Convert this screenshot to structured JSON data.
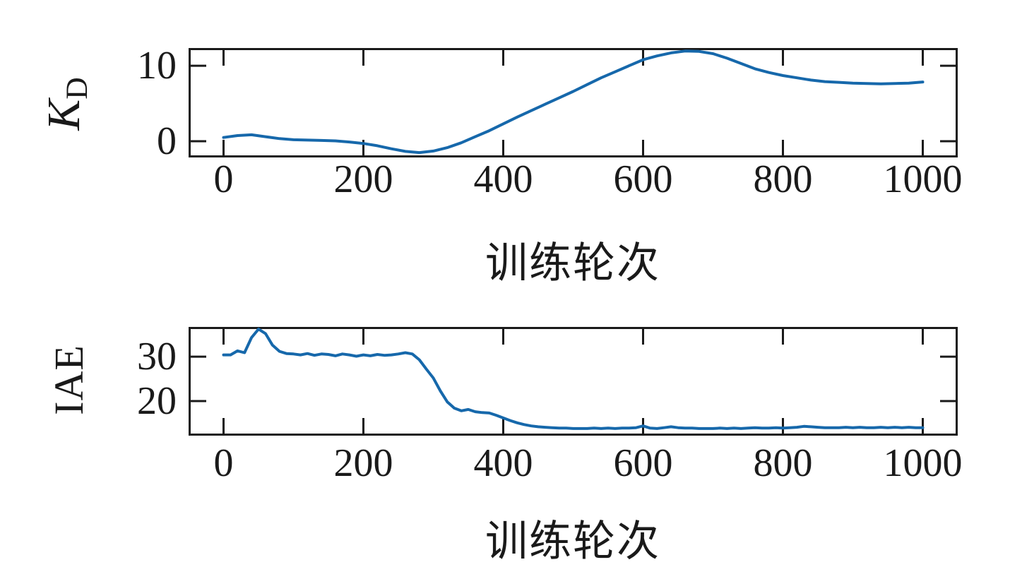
{
  "figure": {
    "background": "#ffffff",
    "axis_color": "#1a1a1a",
    "line_color": "#1668ab"
  },
  "chart_data": [
    {
      "type": "line",
      "title": "",
      "ylabel": "KD",
      "ylabel_main": "K",
      "ylabel_sub": "D",
      "xlabel": "训练轮次",
      "x_ticks": [
        0,
        200,
        400,
        600,
        800,
        1000
      ],
      "y_ticks": [
        10,
        0
      ],
      "xlim": [
        -50,
        1050
      ],
      "ylim": [
        -2.15,
        12.35
      ],
      "grid": false,
      "legend": "none",
      "series": [
        {
          "name": "KD",
          "x_start": 0,
          "x_step": 20,
          "y": [
            0.5,
            0.75,
            0.85,
            0.6,
            0.35,
            0.2,
            0.15,
            0.1,
            0.05,
            -0.1,
            -0.3,
            -0.6,
            -1.0,
            -1.35,
            -1.5,
            -1.3,
            -0.85,
            -0.2,
            0.6,
            1.4,
            2.3,
            3.2,
            4.05,
            4.9,
            5.75,
            6.6,
            7.5,
            8.4,
            9.2,
            10.0,
            10.8,
            11.3,
            11.7,
            11.95,
            11.9,
            11.6,
            11.0,
            10.3,
            9.6,
            9.1,
            8.7,
            8.4,
            8.1,
            7.9,
            7.8,
            7.7,
            7.65,
            7.6,
            7.65,
            7.7,
            7.85
          ]
        }
      ]
    },
    {
      "type": "line",
      "title": "",
      "ylabel": "IAE",
      "ylabel_main": "IAE",
      "ylabel_sub": "",
      "xlabel": "训练轮次",
      "x_ticks": [
        0,
        200,
        400,
        600,
        800,
        1000
      ],
      "y_ticks": [
        30,
        20
      ],
      "xlim": [
        -50,
        1050
      ],
      "ylim": [
        12.2,
        36.7
      ],
      "grid": false,
      "legend": "none",
      "series": [
        {
          "name": "IAE",
          "x_start": 0,
          "x_step": 10,
          "y": [
            30.4,
            30.4,
            31.3,
            30.9,
            34.3,
            36.2,
            35.2,
            32.6,
            31.2,
            30.7,
            30.6,
            30.4,
            30.7,
            30.3,
            30.6,
            30.5,
            30.2,
            30.6,
            30.4,
            30.1,
            30.4,
            30.2,
            30.5,
            30.3,
            30.4,
            30.6,
            30.9,
            30.6,
            29.3,
            27.2,
            25.2,
            22.3,
            19.8,
            18.4,
            17.8,
            18.1,
            17.6,
            17.4,
            17.3,
            16.8,
            16.2,
            15.6,
            15.1,
            14.7,
            14.4,
            14.2,
            14.1,
            14.0,
            13.9,
            13.9,
            13.8,
            13.8,
            13.8,
            13.9,
            13.8,
            13.9,
            13.8,
            13.9,
            13.9,
            14.0,
            14.4,
            13.9,
            13.8,
            14.0,
            14.2,
            14.0,
            13.9,
            13.9,
            13.8,
            13.8,
            13.8,
            13.9,
            13.8,
            13.9,
            13.8,
            13.9,
            14.0,
            13.9,
            13.9,
            14.0,
            13.9,
            14.0,
            14.1,
            14.3,
            14.2,
            14.1,
            14.0,
            14.0,
            14.0,
            14.1,
            14.0,
            14.1,
            14.0,
            14.0,
            14.1,
            14.0,
            14.1,
            14.0,
            14.1,
            14.0,
            14.0
          ]
        }
      ]
    }
  ]
}
